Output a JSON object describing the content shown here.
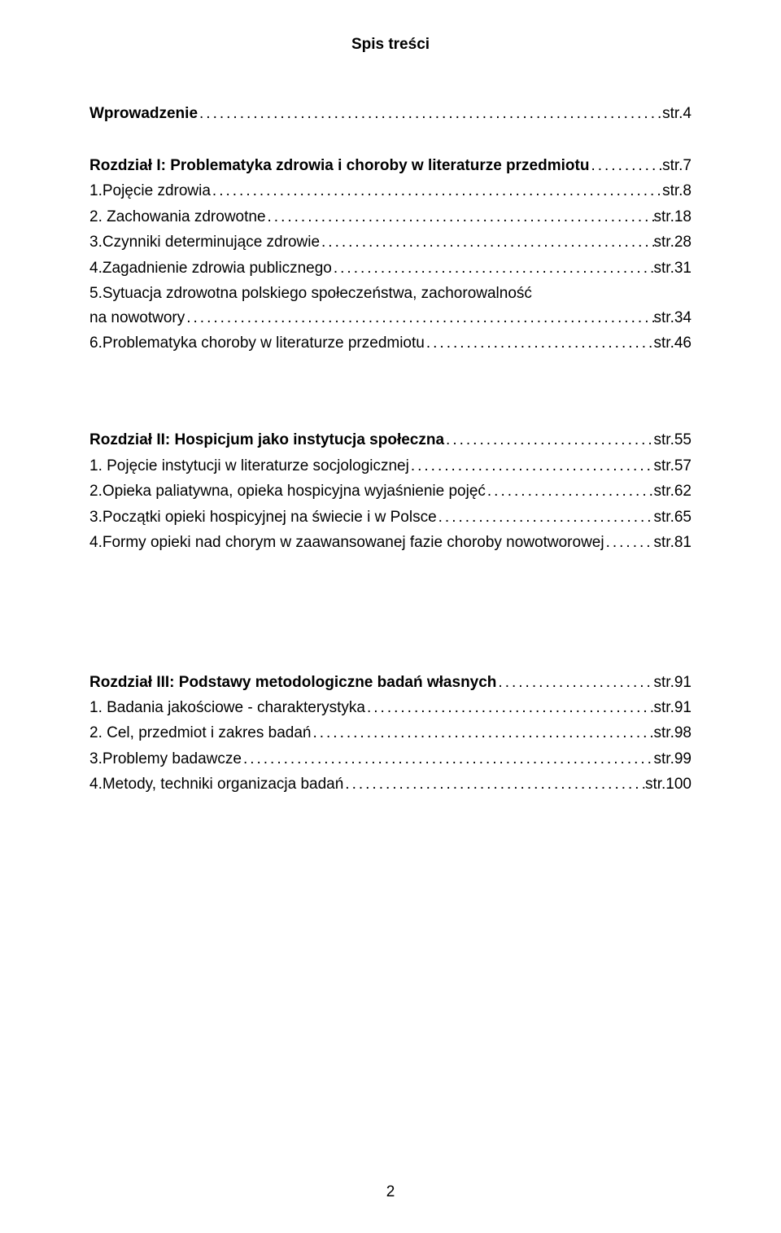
{
  "title": "Spis treści",
  "blocks": [
    {
      "gap_before": 0,
      "lines": [
        {
          "label": "Wprowadzenie",
          "page": "str.4",
          "bold": true
        }
      ]
    },
    {
      "gap_before": 32,
      "lines": [
        {
          "label": "Rozdział I: Problematyka zdrowia i choroby w literaturze przedmiotu",
          "page": "str.7",
          "bold": true
        },
        {
          "label": "1.Pojęcie zdrowia",
          "page": "str.8",
          "bold": false
        },
        {
          "label": "2. Zachowania zdrowotne",
          "page": "str.18",
          "bold": false
        },
        {
          "label": "3.Czynniki determinujące zdrowie",
          "page": "str.28",
          "bold": false
        },
        {
          "label": "4.Zagadnienie zdrowia publicznego",
          "page": "str.31",
          "bold": false
        },
        {
          "label": "5.Sytuacja zdrowotna polskiego społeczeństwa, zachorowalność na nowotwory",
          "page": "str.34",
          "bold": false,
          "multi": true
        },
        {
          "label": "6.Problematyka choroby w literaturze przedmiotu",
          "page": "str.46",
          "bold": false
        }
      ]
    },
    {
      "gap_before": 88,
      "lines": [
        {
          "label": "Rozdział II: Hospicjum jako instytucja społeczna",
          "page": "str.55",
          "bold": true
        },
        {
          "label": "1. Pojęcie instytucji w literaturze socjologicznej",
          "page": "str.57",
          "bold": false
        },
        {
          "label": "2.Opieka paliatywna, opieka hospicyjna wyjaśnienie pojęć",
          "page": "str.62",
          "bold": false
        },
        {
          "label": "3.Początki opieki hospicyjnej na świecie i w Polsce",
          "page": "str.65",
          "bold": false
        },
        {
          "label": "4.Formy opieki nad chorym w zaawansowanej fazie choroby nowotworowej",
          "page": "str.81",
          "bold": false
        }
      ]
    },
    {
      "gap_before": 140,
      "lines": [
        {
          "label": "Rozdział III: Podstawy  metodologiczne badań własnych",
          "page": "str.91",
          "bold": true
        },
        {
          "label": "1. Badania jakościowe - charakterystyka",
          "page": "str.91",
          "bold": false
        },
        {
          "label": "2. Cel, przedmiot i zakres badań",
          "page": "str.98",
          "bold": false
        },
        {
          "label": "3.Problemy badawcze",
          "page": "str.99",
          "bold": false
        },
        {
          "label": "4.Metody, techniki  organizacja badań",
          "page": "str.100",
          "bold": false
        }
      ]
    }
  ],
  "page_number": "2"
}
